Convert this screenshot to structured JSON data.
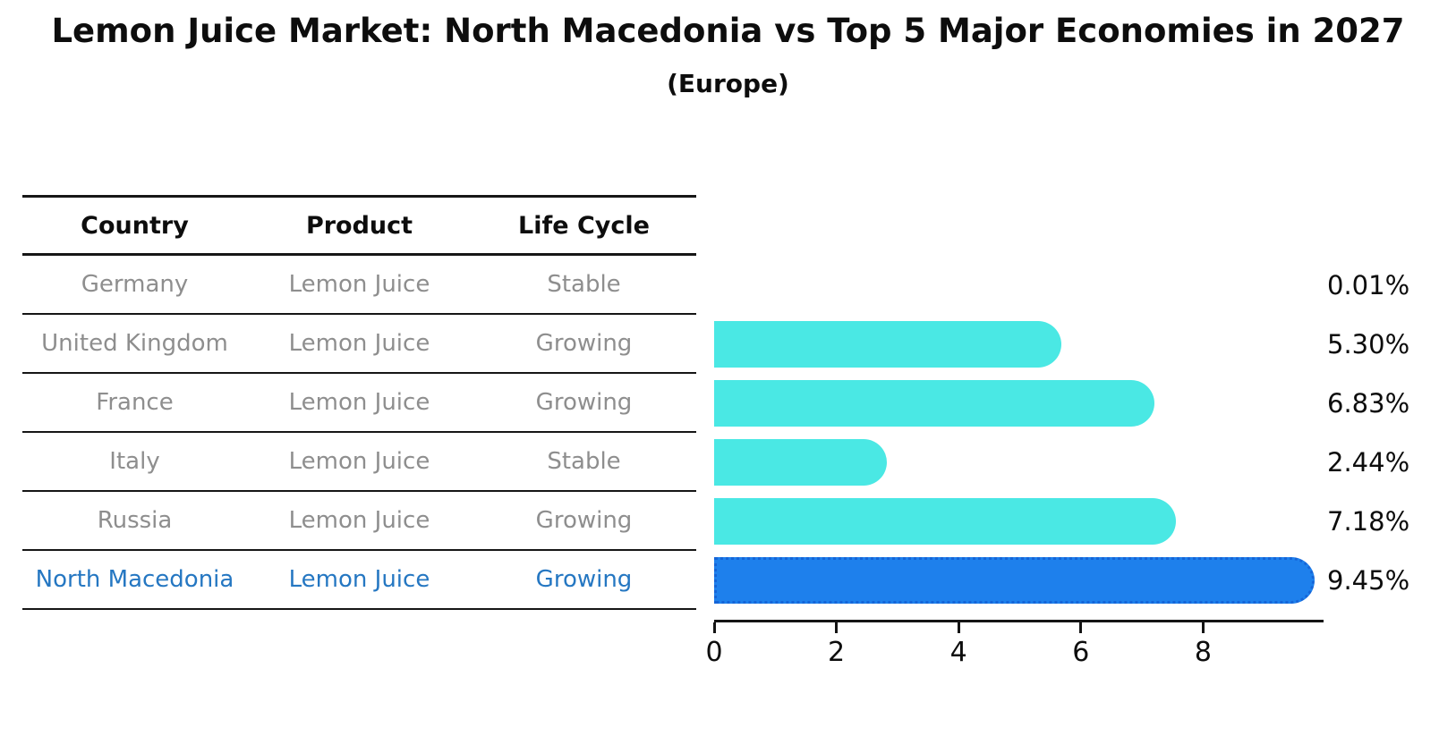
{
  "title": "Lemon Juice Market: North Macedonia vs Top 5 Major Economies in 2027",
  "subtitle": "(Europe)",
  "table": {
    "headers": [
      "Country",
      "Product",
      "Life Cycle"
    ],
    "rows": [
      {
        "country": "Germany",
        "product": "Lemon Juice",
        "life_cycle": "Stable",
        "highlight": false
      },
      {
        "country": "United Kingdom",
        "product": "Lemon Juice",
        "life_cycle": "Growing",
        "highlight": false
      },
      {
        "country": "France",
        "product": "Lemon Juice",
        "life_cycle": "Growing",
        "highlight": false
      },
      {
        "country": "Italy",
        "product": "Lemon Juice",
        "life_cycle": "Stable",
        "highlight": false
      },
      {
        "country": "Russia",
        "product": "Lemon Juice",
        "life_cycle": "Growing",
        "highlight": false
      },
      {
        "country": "North Macedonia",
        "product": "Lemon Juice",
        "life_cycle": "Growing",
        "highlight": true
      }
    ]
  },
  "chart_data": {
    "type": "bar",
    "orientation": "horizontal",
    "title": "Lemon Juice Market: North Macedonia vs Top 5 Major Economies in 2027",
    "subtitle": "(Europe)",
    "categories": [
      "Germany",
      "United Kingdom",
      "France",
      "Italy",
      "Russia",
      "North Macedonia"
    ],
    "values": [
      0.01,
      5.3,
      6.83,
      2.44,
      7.18,
      9.45
    ],
    "value_labels": [
      "0.01%",
      "5.30%",
      "6.83%",
      "2.44%",
      "7.18%",
      "9.45%"
    ],
    "highlight_index": 5,
    "xlabel": "",
    "ylabel": "",
    "xticks": [
      0,
      2,
      4,
      6,
      8
    ],
    "xtick_labels": [
      "0",
      "2",
      "4",
      "6",
      "8"
    ],
    "xlim": [
      0,
      9.92
    ],
    "grid": false,
    "legend": false
  },
  "colors": {
    "bar_default": "#4AE8E4",
    "bar_highlight": "#1E80EC",
    "bar_highlight_border": "#1565D8",
    "header_text": "#0d0d0d",
    "row_text": "#8e8e8e",
    "highlight_text": "#2577c2",
    "axis": "#141414"
  }
}
